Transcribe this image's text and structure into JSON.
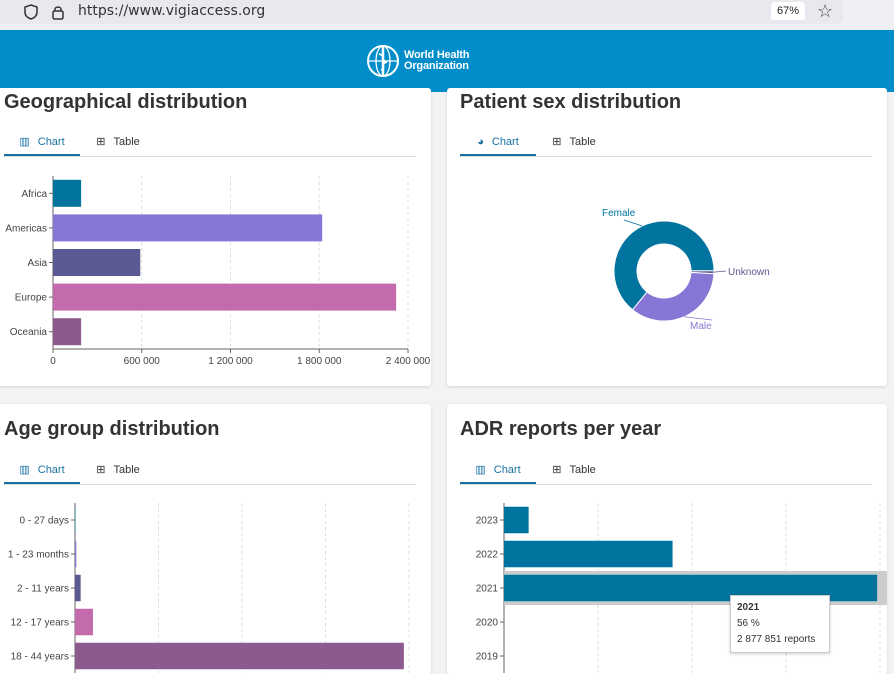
{
  "browser": {
    "url": "https://www.vigiaccess.org",
    "zoom": "67%"
  },
  "header": {
    "org_line1": "World Health",
    "org_line2": "Organization"
  },
  "tabs": {
    "chart": "Chart",
    "table": "Table"
  },
  "cards": {
    "geo": {
      "title": "Geographical distribution"
    },
    "sex": {
      "title": "Patient sex distribution"
    },
    "age": {
      "title": "Age group distribution"
    },
    "adr": {
      "title": "ADR reports per year"
    }
  },
  "tooltip": {
    "year": "2021",
    "percent": "56 %",
    "reports": "2 877 851 reports"
  },
  "colors": {
    "blue": "#00739e",
    "lavender": "#8776d6",
    "slate": "#5c5a92",
    "pink": "#c46bae",
    "plum": "#8c5a8f"
  },
  "chart_data": [
    {
      "id": "geo",
      "type": "bar",
      "orientation": "horizontal",
      "categories": [
        "Africa",
        "Americas",
        "Asia",
        "Europe",
        "Oceania"
      ],
      "values": [
        190000,
        1820000,
        590000,
        2320000,
        190000
      ],
      "colors": [
        "#00739e",
        "#8776d6",
        "#5c5a92",
        "#c46bae",
        "#8c5a8f"
      ],
      "xlim": [
        0,
        2400000
      ],
      "xticks": [
        "0",
        "600 000",
        "1 200 000",
        "1 800 000",
        "2 400 000"
      ],
      "grid": true
    },
    {
      "id": "sex",
      "type": "pie",
      "style": "donut",
      "labels": [
        "Female",
        "Male",
        "Unknown"
      ],
      "values": [
        64,
        35,
        1
      ],
      "colors": [
        "#00739e",
        "#8776d6",
        "#5c5a92"
      ]
    },
    {
      "id": "age",
      "type": "bar",
      "orientation": "horizontal",
      "categories": [
        "0 - 27 days",
        "1 - 23 months",
        "2 - 11 years",
        "12 - 17 years",
        "18 - 44 years"
      ],
      "values": [
        2,
        5,
        22,
        70,
        1280
      ],
      "colors": [
        "#00739e",
        "#8776d6",
        "#5c5a92",
        "#c46bae",
        "#8c5a8f"
      ],
      "xlim": [
        0,
        1300
      ],
      "grid": true
    },
    {
      "id": "adr",
      "type": "bar",
      "orientation": "horizontal",
      "categories": [
        "2023",
        "2022",
        "2021",
        "2020",
        "2019"
      ],
      "values": [
        190000,
        1300000,
        2877851,
        0,
        0
      ],
      "colors": [
        "#00739e",
        "#00739e",
        "#00739e",
        "#00739e",
        "#00739e"
      ],
      "xlim": [
        0,
        2900000
      ],
      "highlight": "2021",
      "grid": true
    }
  ]
}
